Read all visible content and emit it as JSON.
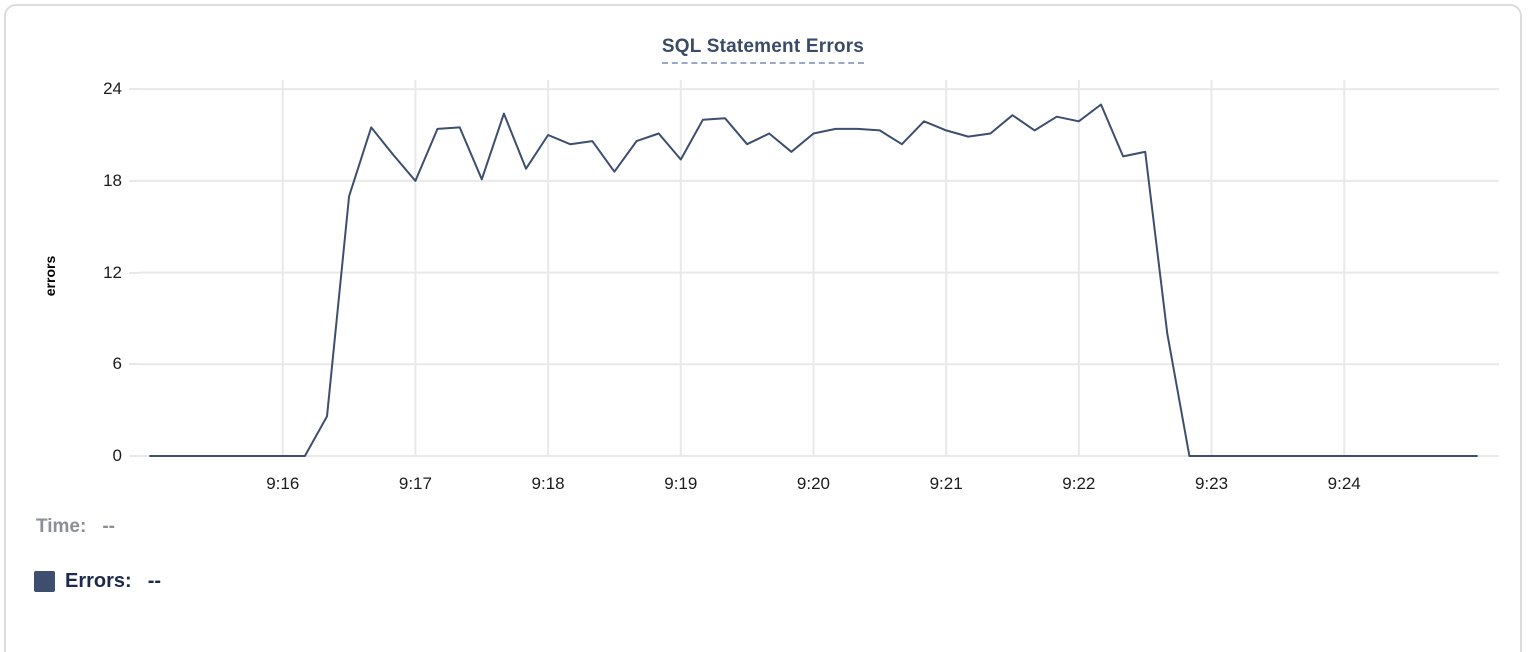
{
  "card": {
    "border_color": "#dcdcdc",
    "background": "#ffffff"
  },
  "chart_data": {
    "type": "line",
    "title": "SQL Statement Errors",
    "xlabel": "",
    "ylabel": "errors",
    "grid": true,
    "legend_position": "bottom-left",
    "title_color": "#3a4a68",
    "title_underline_color": "#9aa9c7",
    "line_color": "#3e4e6e",
    "grid_color": "#e9e9e9",
    "tick_text_color": "#1c1c1c",
    "ylim": [
      0,
      24.6
    ],
    "yticks": [
      0,
      6,
      12,
      18,
      24
    ],
    "x_range": [
      "9:14:55",
      "9:25:10"
    ],
    "xtick_times": [
      "9:16:00",
      "9:17:00",
      "9:18:00",
      "9:19:00",
      "9:20:00",
      "9:21:00",
      "9:22:00",
      "9:23:00",
      "9:24:00"
    ],
    "xtick_labels": [
      "9:16",
      "9:17",
      "9:18",
      "9:19",
      "9:20",
      "9:21",
      "9:22",
      "9:23",
      "9:24"
    ],
    "series": [
      {
        "name": "Errors",
        "color": "#3e4e6e",
        "x": [
          "9:15:00",
          "9:15:10",
          "9:15:20",
          "9:15:30",
          "9:15:40",
          "9:15:50",
          "9:16:00",
          "9:16:10",
          "9:16:20",
          "9:16:30",
          "9:16:40",
          "9:16:50",
          "9:17:00",
          "9:17:10",
          "9:17:20",
          "9:17:30",
          "9:17:40",
          "9:17:50",
          "9:18:00",
          "9:18:10",
          "9:18:20",
          "9:18:30",
          "9:18:40",
          "9:18:50",
          "9:19:00",
          "9:19:10",
          "9:19:20",
          "9:19:30",
          "9:19:40",
          "9:19:50",
          "9:20:00",
          "9:20:10",
          "9:20:20",
          "9:20:30",
          "9:20:40",
          "9:20:50",
          "9:21:00",
          "9:21:10",
          "9:21:20",
          "9:21:30",
          "9:21:40",
          "9:21:50",
          "9:22:00",
          "9:22:10",
          "9:22:20",
          "9:22:30",
          "9:22:40",
          "9:22:50",
          "9:23:00",
          "9:23:10",
          "9:23:20",
          "9:23:30",
          "9:23:40",
          "9:23:50",
          "9:24:00",
          "9:24:10",
          "9:24:20",
          "9:24:30",
          "9:24:40",
          "9:24:50",
          "9:25:00"
        ],
        "y": [
          0,
          0,
          0,
          0,
          0,
          0,
          0,
          0,
          2.6,
          17,
          21.5,
          19.7,
          18,
          21.4,
          21.5,
          18.1,
          22.4,
          18.8,
          21,
          20.4,
          20.6,
          18.6,
          20.6,
          21.1,
          19.4,
          22,
          22.1,
          20.4,
          21.1,
          19.9,
          21.1,
          21.4,
          21.4,
          21.3,
          20.4,
          21.9,
          21.3,
          20.9,
          21.1,
          22.3,
          21.3,
          22.2,
          21.9,
          23,
          19.6,
          19.9,
          8,
          0,
          0,
          0,
          0,
          0,
          0,
          0,
          0,
          0,
          0,
          0,
          0,
          0,
          0
        ]
      }
    ]
  },
  "readout": {
    "time_label": "Time:",
    "time_value": "--",
    "errors_label": "Errors:",
    "errors_value": "--",
    "swatch_color": "#3e4e6e",
    "time_color": "#8b8f96",
    "errors_color": "#1c2a4e"
  }
}
